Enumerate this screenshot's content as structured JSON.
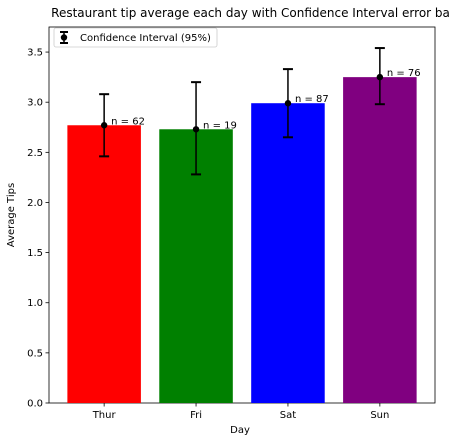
{
  "chart_data": {
    "type": "bar",
    "title": "Restaurant tip average each day with Confidence Interval error bar",
    "xlabel": "Day",
    "ylabel": "Average Tips",
    "categories": [
      "Thur",
      "Fri",
      "Sat",
      "Sun"
    ],
    "values": [
      2.77,
      2.73,
      2.99,
      3.25
    ],
    "ci_low": [
      2.46,
      2.28,
      2.65,
      2.98
    ],
    "ci_high": [
      3.08,
      3.2,
      3.33,
      3.54
    ],
    "n_labels": [
      "n = 62",
      "n = 19",
      "n = 87",
      "n = 76"
    ],
    "colors": [
      "#ff0000",
      "#008000",
      "#0000ff",
      "#800080"
    ],
    "ylim": [
      0,
      3.75
    ],
    "yticks": [
      "0.0",
      "0.5",
      "1.0",
      "1.5",
      "2.0",
      "2.5",
      "3.0",
      "3.5"
    ],
    "legend": {
      "label": "Confidence Interval (95%)",
      "placement": "upper-left"
    },
    "grid": false
  }
}
